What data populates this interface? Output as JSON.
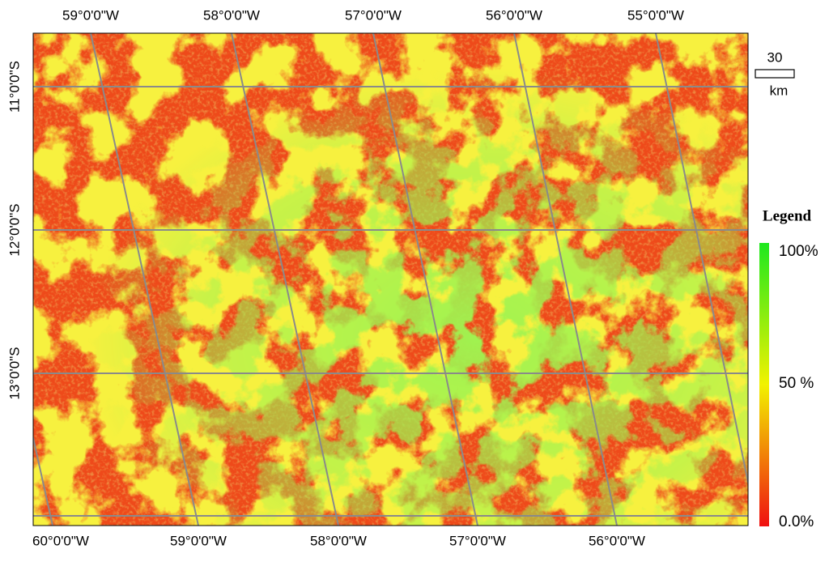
{
  "map": {
    "top_labels": [
      "59°0'0\"W",
      "58°0'0\"W",
      "57°0'0\"W",
      "56°0'0\"W",
      "55°0'0\"W"
    ],
    "bottom_labels": [
      "60°0'0\"W",
      "59°0'0\"W",
      "58°0'0\"W",
      "57°0'0\"W",
      "56°0'0\"W"
    ],
    "left_labels": [
      "11°0'0\"S",
      "12°0'0\"S",
      "13°0'0\"S"
    ],
    "scale_bar": {
      "value": "30",
      "unit": "km"
    },
    "legend": {
      "title": "Legend",
      "labels": [
        "100%",
        "50 %",
        "0.0%"
      ]
    }
  }
}
